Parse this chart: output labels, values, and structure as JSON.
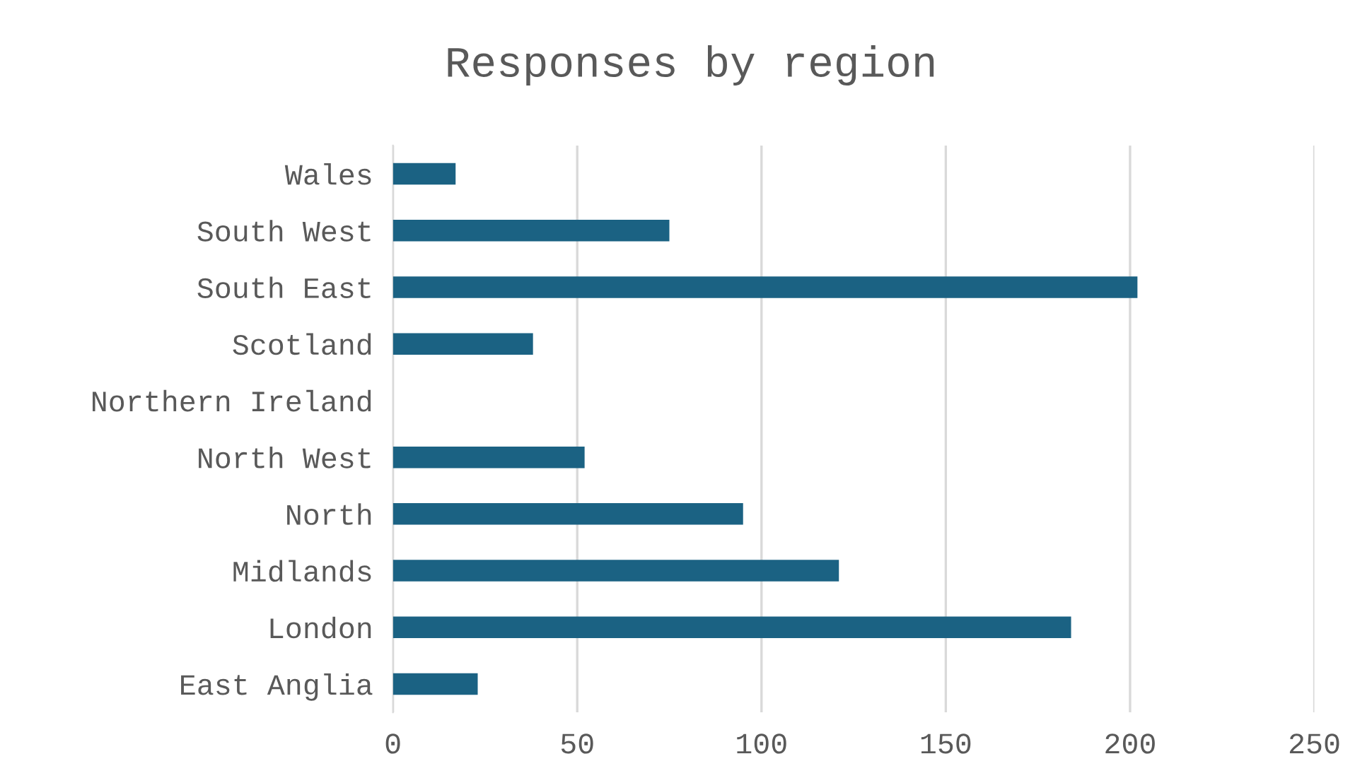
{
  "chart_data": {
    "type": "bar",
    "orientation": "horizontal",
    "title": "Responses by region",
    "categories": [
      "Wales",
      "South West",
      "South East",
      "Scotland",
      "Northern Ireland",
      "North West",
      "North",
      "Midlands",
      "London",
      "East Anglia"
    ],
    "values": [
      17,
      75,
      202,
      38,
      0,
      52,
      95,
      121,
      184,
      23
    ],
    "color": "#1b6283",
    "xlim": [
      0,
      250
    ],
    "xticks": [
      0,
      50,
      100,
      150,
      200,
      250
    ],
    "grid": "x",
    "legend": false
  }
}
